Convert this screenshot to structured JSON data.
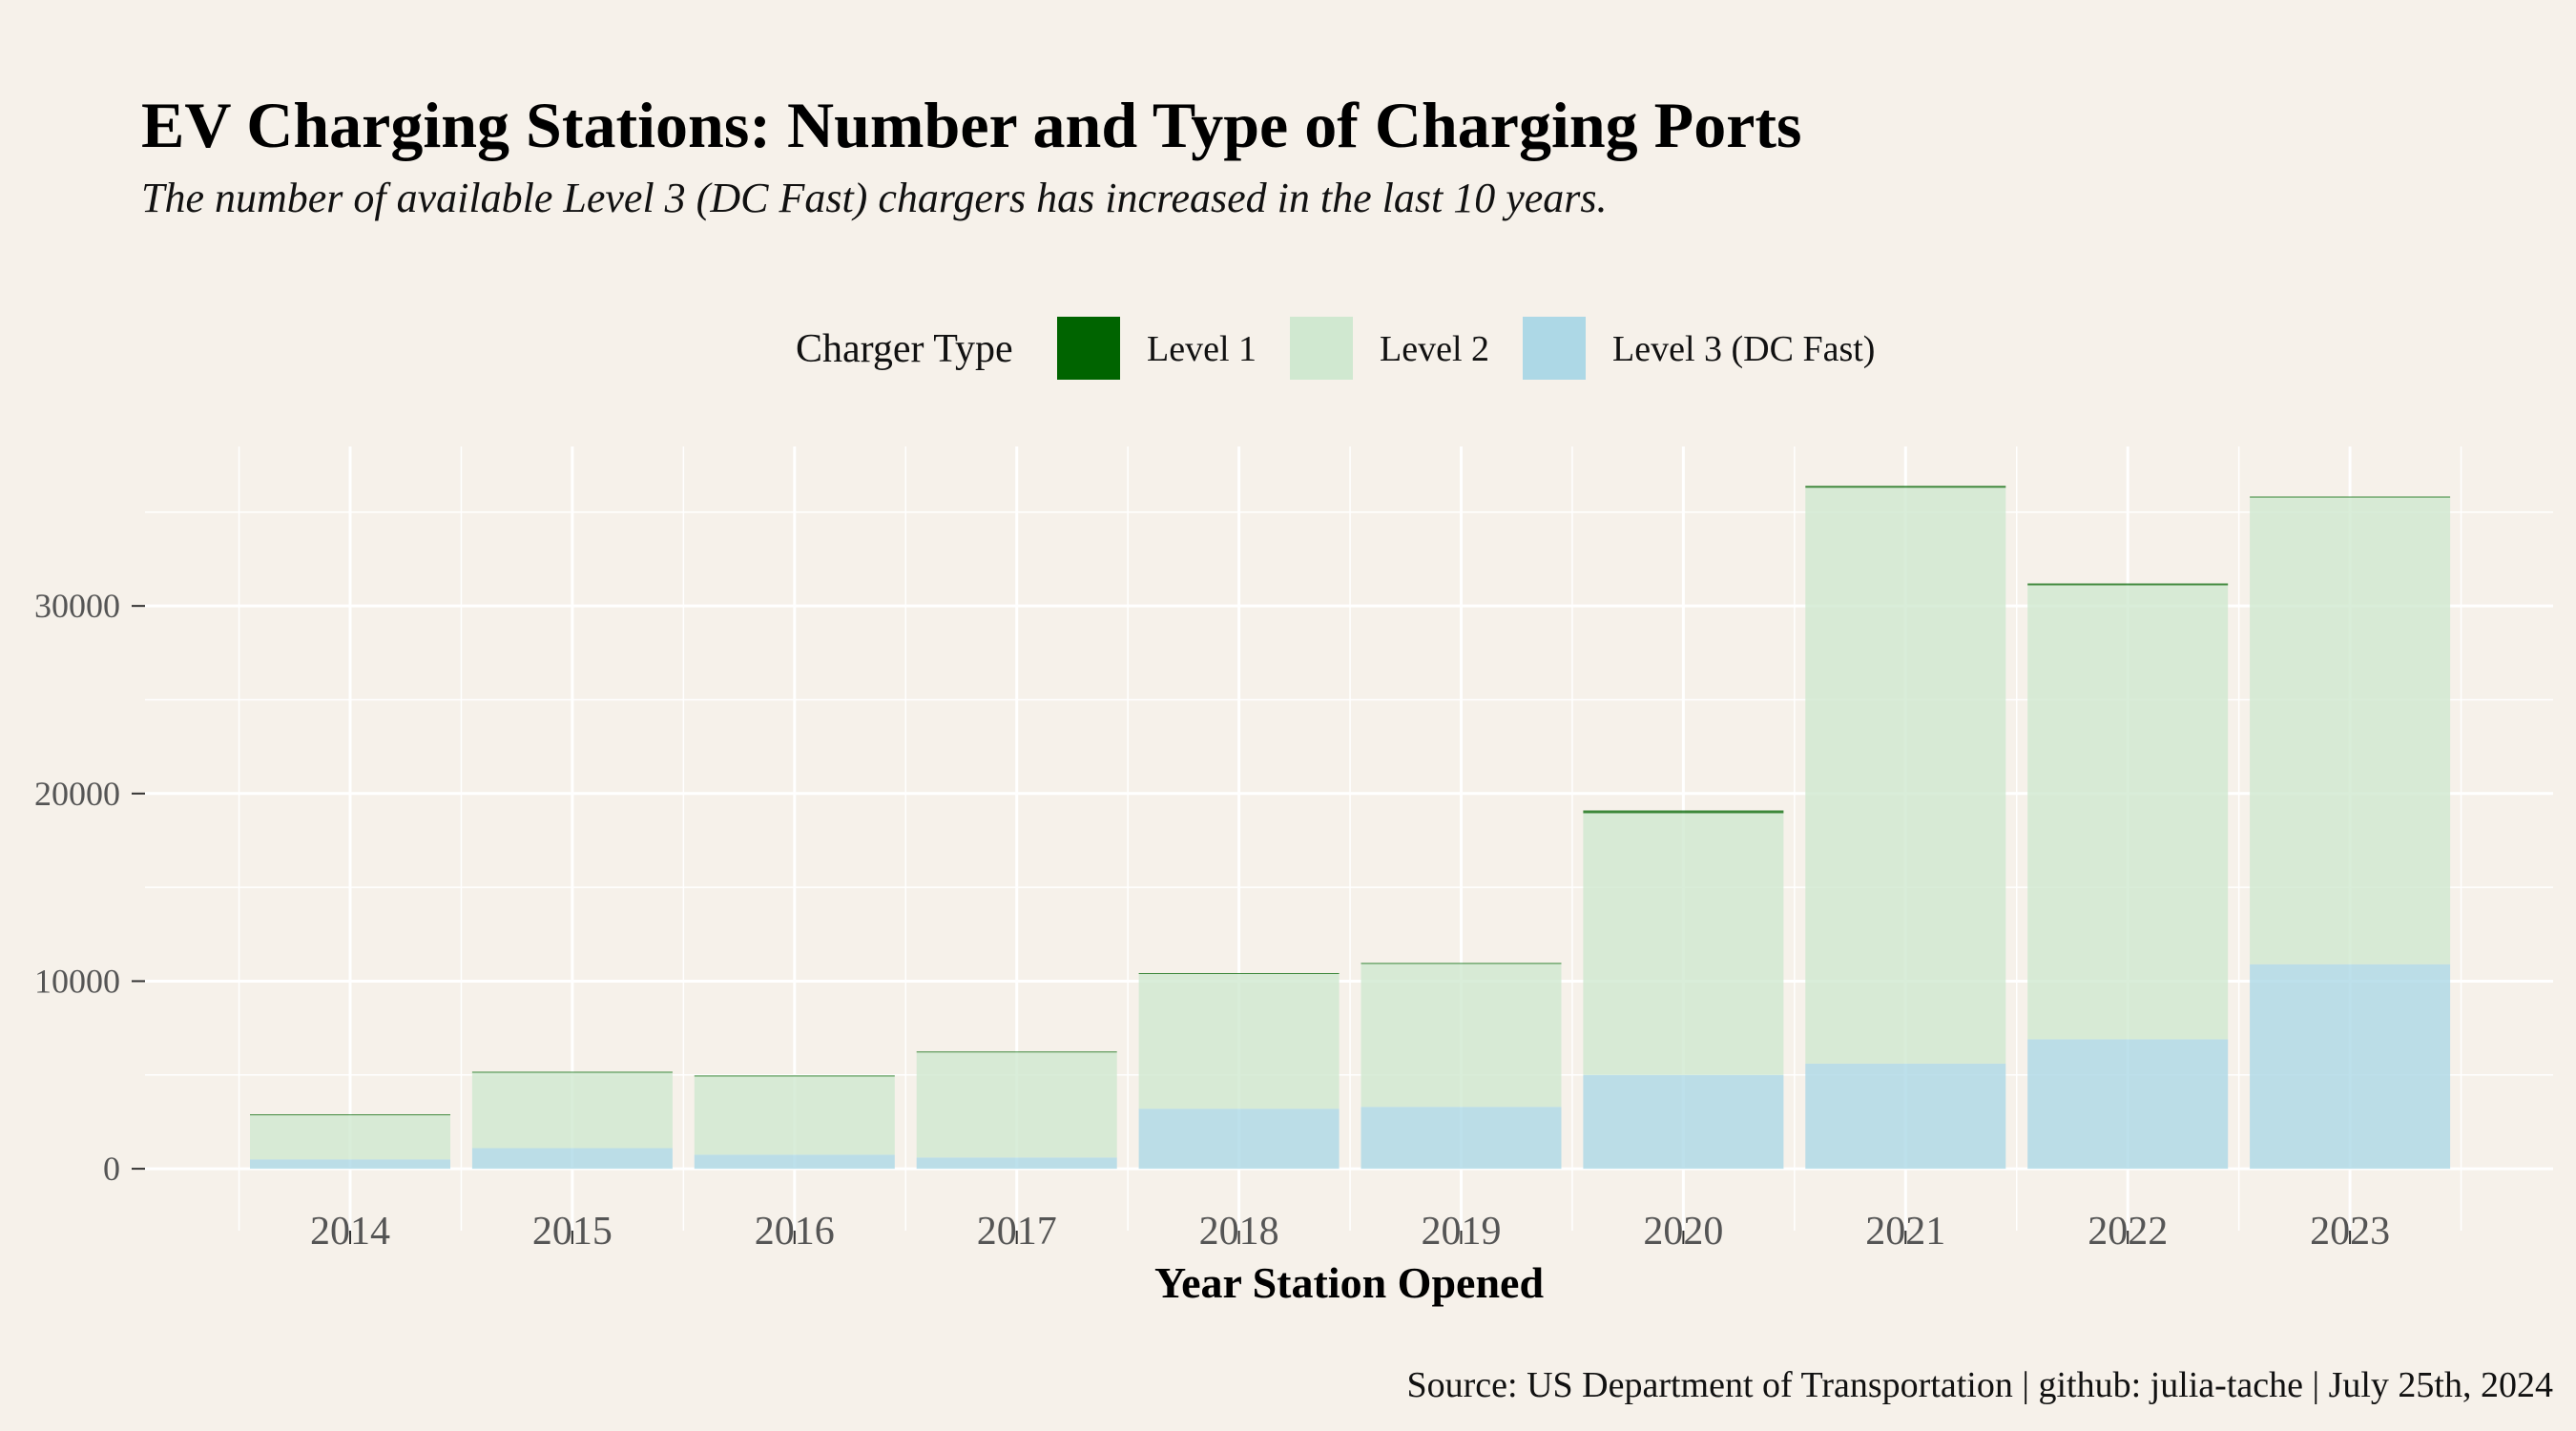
{
  "chart_data": {
    "type": "bar",
    "stacked": true,
    "title": "EV Charging Stations: Number and Type of Charging Ports",
    "subtitle": "The number of available Level 3 (DC Fast) chargers has increased in the last 10 years.",
    "xlabel": "Year Station Opened",
    "ylabel": "",
    "categories": [
      "2014",
      "2015",
      "2016",
      "2017",
      "2018",
      "2019",
      "2020",
      "2021",
      "2022",
      "2023"
    ],
    "series": [
      {
        "name": "Level 3 (DC Fast)",
        "color": "#add8e6",
        "values": [
          500,
          1100,
          750,
          600,
          3200,
          3300,
          5000,
          5600,
          6900,
          10900
        ]
      },
      {
        "name": "Level 2",
        "color": "#d0e8d0",
        "values": [
          2350,
          4050,
          4200,
          5600,
          7200,
          7650,
          13950,
          30700,
          24200,
          24900
        ]
      },
      {
        "name": "Level 1",
        "color": "#006400",
        "values": [
          50,
          20,
          20,
          50,
          30,
          20,
          150,
          100,
          100,
          30
        ]
      }
    ],
    "ylim": [
      -3300,
      38500
    ],
    "yticks": [
      0,
      10000,
      20000,
      30000
    ],
    "ytick_labels": [
      "0",
      "10000",
      "20000",
      "30000"
    ],
    "grid": true,
    "legend": {
      "title": "Charger Type",
      "position": "top",
      "items": [
        "Level 1",
        "Level 2",
        "Level 3 (DC Fast)"
      ],
      "colors": [
        "#006400",
        "#d0e8d0",
        "#add8e6"
      ]
    },
    "caption": "Source: US Department of Transportation | github: julia-tache | July 25th, 2024"
  }
}
